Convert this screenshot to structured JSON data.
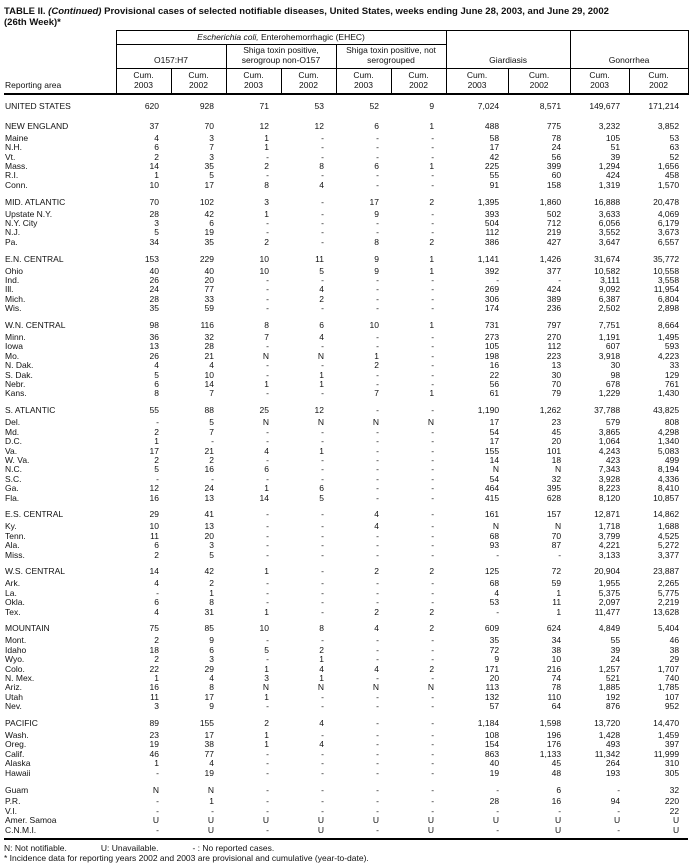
{
  "title": {
    "part1": "TABLE II.",
    "part2": " (Continued) ",
    "part3": "Provisional cases of selected notifiable diseases, United States, weeks ending June 28, 2003, and June 29, 2002",
    "line2": "(26th Week)*"
  },
  "table": {
    "header": {
      "reporting_area": "Reporting area",
      "ehec_italic": "Escherichia coli,",
      "ehec_rest": " Enterohemorrhagic (EHEC)",
      "group_o157": "O157:H7",
      "group_shiga_non_o157": "Shiga toxin positive, serogroup non-O157",
      "group_shiga_not_sero": "Shiga toxin positive, not serogrouped",
      "group_giardiasis": "Giardiasis",
      "group_gonorrhea": "Gonorrhea",
      "cum_label": "Cum.",
      "year_2003": "2003",
      "year_2002": "2002"
    },
    "rows": [
      {
        "area": "UNITED STATES",
        "section": true,
        "values": [
          "620",
          "928",
          "71",
          "53",
          "52",
          "9",
          "7,024",
          "8,571",
          "149,677",
          "171,214"
        ]
      },
      {
        "area": "NEW ENGLAND",
        "section": true,
        "values": [
          "37",
          "70",
          "12",
          "12",
          "6",
          "1",
          "488",
          "775",
          "3,232",
          "3,852"
        ]
      },
      {
        "area": "Maine",
        "section": false,
        "values": [
          "4",
          "3",
          "1",
          "-",
          "-",
          "-",
          "58",
          "78",
          "105",
          "53"
        ]
      },
      {
        "area": "N.H.",
        "section": false,
        "values": [
          "6",
          "7",
          "1",
          "-",
          "-",
          "-",
          "17",
          "24",
          "51",
          "63"
        ]
      },
      {
        "area": "Vt.",
        "section": false,
        "values": [
          "2",
          "3",
          "-",
          "-",
          "-",
          "-",
          "42",
          "56",
          "39",
          "52"
        ]
      },
      {
        "area": "Mass.",
        "section": false,
        "values": [
          "14",
          "35",
          "2",
          "8",
          "6",
          "1",
          "225",
          "399",
          "1,294",
          "1,656"
        ]
      },
      {
        "area": "R.I.",
        "section": false,
        "values": [
          "1",
          "5",
          "-",
          "-",
          "-",
          "-",
          "55",
          "60",
          "424",
          "458"
        ]
      },
      {
        "area": "Conn.",
        "section": false,
        "values": [
          "10",
          "17",
          "8",
          "4",
          "-",
          "-",
          "91",
          "158",
          "1,319",
          "1,570"
        ]
      },
      {
        "area": "MID. ATLANTIC",
        "section": true,
        "values": [
          "70",
          "102",
          "3",
          "-",
          "17",
          "2",
          "1,395",
          "1,860",
          "16,888",
          "20,478"
        ]
      },
      {
        "area": "Upstate N.Y.",
        "section": false,
        "values": [
          "28",
          "42",
          "1",
          "-",
          "9",
          "-",
          "393",
          "502",
          "3,633",
          "4,069"
        ]
      },
      {
        "area": "N.Y. City",
        "section": false,
        "values": [
          "3",
          "6",
          "-",
          "-",
          "-",
          "-",
          "504",
          "712",
          "6,056",
          "6,179"
        ]
      },
      {
        "area": "N.J.",
        "section": false,
        "values": [
          "5",
          "19",
          "-",
          "-",
          "-",
          "-",
          "112",
          "219",
          "3,552",
          "3,673"
        ]
      },
      {
        "area": "Pa.",
        "section": false,
        "values": [
          "34",
          "35",
          "2",
          "-",
          "8",
          "2",
          "386",
          "427",
          "3,647",
          "6,557"
        ]
      },
      {
        "area": "E.N. CENTRAL",
        "section": true,
        "values": [
          "153",
          "229",
          "10",
          "11",
          "9",
          "1",
          "1,141",
          "1,426",
          "31,674",
          "35,772"
        ]
      },
      {
        "area": "Ohio",
        "section": false,
        "values": [
          "40",
          "40",
          "10",
          "5",
          "9",
          "1",
          "392",
          "377",
          "10,582",
          "10,558"
        ]
      },
      {
        "area": "Ind.",
        "section": false,
        "values": [
          "26",
          "20",
          "-",
          "-",
          "-",
          "-",
          "-",
          "-",
          "3,111",
          "3,558"
        ]
      },
      {
        "area": "Ill.",
        "section": false,
        "values": [
          "24",
          "77",
          "-",
          "4",
          "-",
          "-",
          "269",
          "424",
          "9,092",
          "11,954"
        ]
      },
      {
        "area": "Mich.",
        "section": false,
        "values": [
          "28",
          "33",
          "-",
          "2",
          "-",
          "-",
          "306",
          "389",
          "6,387",
          "6,804"
        ]
      },
      {
        "area": "Wis.",
        "section": false,
        "values": [
          "35",
          "59",
          "-",
          "-",
          "-",
          "-",
          "174",
          "236",
          "2,502",
          "2,898"
        ]
      },
      {
        "area": "W.N. CENTRAL",
        "section": true,
        "values": [
          "98",
          "116",
          "8",
          "6",
          "10",
          "1",
          "731",
          "797",
          "7,751",
          "8,664"
        ]
      },
      {
        "area": "Minn.",
        "section": false,
        "values": [
          "36",
          "32",
          "7",
          "4",
          "-",
          "-",
          "273",
          "270",
          "1,191",
          "1,495"
        ]
      },
      {
        "area": "Iowa",
        "section": false,
        "values": [
          "13",
          "28",
          "-",
          "-",
          "-",
          "-",
          "105",
          "112",
          "607",
          "593"
        ]
      },
      {
        "area": "Mo.",
        "section": false,
        "values": [
          "26",
          "21",
          "N",
          "N",
          "1",
          "-",
          "198",
          "223",
          "3,918",
          "4,223"
        ]
      },
      {
        "area": "N. Dak.",
        "section": false,
        "values": [
          "4",
          "4",
          "-",
          "-",
          "2",
          "-",
          "16",
          "13",
          "30",
          "33"
        ]
      },
      {
        "area": "S. Dak.",
        "section": false,
        "values": [
          "5",
          "10",
          "-",
          "1",
          "-",
          "-",
          "22",
          "30",
          "98",
          "129"
        ]
      },
      {
        "area": "Nebr.",
        "section": false,
        "values": [
          "6",
          "14",
          "1",
          "1",
          "-",
          "-",
          "56",
          "70",
          "678",
          "761"
        ]
      },
      {
        "area": "Kans.",
        "section": false,
        "values": [
          "8",
          "7",
          "-",
          "-",
          "7",
          "1",
          "61",
          "79",
          "1,229",
          "1,430"
        ]
      },
      {
        "area": "S. ATLANTIC",
        "section": true,
        "values": [
          "55",
          "88",
          "25",
          "12",
          "-",
          "-",
          "1,190",
          "1,262",
          "37,788",
          "43,825"
        ]
      },
      {
        "area": "Del.",
        "section": false,
        "values": [
          "-",
          "5",
          "N",
          "N",
          "N",
          "N",
          "17",
          "23",
          "579",
          "808"
        ]
      },
      {
        "area": "Md.",
        "section": false,
        "values": [
          "2",
          "7",
          "-",
          "-",
          "-",
          "-",
          "54",
          "45",
          "3,865",
          "4,298"
        ]
      },
      {
        "area": "D.C.",
        "section": false,
        "values": [
          "1",
          "-",
          "-",
          "-",
          "-",
          "-",
          "17",
          "20",
          "1,064",
          "1,340"
        ]
      },
      {
        "area": "Va.",
        "section": false,
        "values": [
          "17",
          "21",
          "4",
          "1",
          "-",
          "-",
          "155",
          "101",
          "4,243",
          "5,083"
        ]
      },
      {
        "area": "W. Va.",
        "section": false,
        "values": [
          "2",
          "2",
          "-",
          "-",
          "-",
          "-",
          "14",
          "18",
          "423",
          "499"
        ]
      },
      {
        "area": "N.C.",
        "section": false,
        "values": [
          "5",
          "16",
          "6",
          "-",
          "-",
          "-",
          "N",
          "N",
          "7,343",
          "8,194"
        ]
      },
      {
        "area": "S.C.",
        "section": false,
        "values": [
          "-",
          "-",
          "-",
          "-",
          "-",
          "-",
          "54",
          "32",
          "3,928",
          "4,336"
        ]
      },
      {
        "area": "Ga.",
        "section": false,
        "values": [
          "12",
          "24",
          "1",
          "6",
          "-",
          "-",
          "464",
          "395",
          "8,223",
          "8,410"
        ]
      },
      {
        "area": "Fla.",
        "section": false,
        "values": [
          "16",
          "13",
          "14",
          "5",
          "-",
          "-",
          "415",
          "628",
          "8,120",
          "10,857"
        ]
      },
      {
        "area": "E.S. CENTRAL",
        "section": true,
        "values": [
          "29",
          "41",
          "-",
          "-",
          "4",
          "-",
          "161",
          "157",
          "12,871",
          "14,862"
        ]
      },
      {
        "area": "Ky.",
        "section": false,
        "values": [
          "10",
          "13",
          "-",
          "-",
          "4",
          "-",
          "N",
          "N",
          "1,718",
          "1,688"
        ]
      },
      {
        "area": "Tenn.",
        "section": false,
        "values": [
          "11",
          "20",
          "-",
          "-",
          "-",
          "-",
          "68",
          "70",
          "3,799",
          "4,525"
        ]
      },
      {
        "area": "Ala.",
        "section": false,
        "values": [
          "6",
          "3",
          "-",
          "-",
          "-",
          "-",
          "93",
          "87",
          "4,221",
          "5,272"
        ]
      },
      {
        "area": "Miss.",
        "section": false,
        "values": [
          "2",
          "5",
          "-",
          "-",
          "-",
          "-",
          "-",
          "-",
          "3,133",
          "3,377"
        ]
      },
      {
        "area": "W.S. CENTRAL",
        "section": true,
        "values": [
          "14",
          "42",
          "1",
          "-",
          "2",
          "2",
          "125",
          "72",
          "20,904",
          "23,887"
        ]
      },
      {
        "area": "Ark.",
        "section": false,
        "values": [
          "4",
          "2",
          "-",
          "-",
          "-",
          "-",
          "68",
          "59",
          "1,955",
          "2,265"
        ]
      },
      {
        "area": "La.",
        "section": false,
        "values": [
          "-",
          "1",
          "-",
          "-",
          "-",
          "-",
          "4",
          "1",
          "5,375",
          "5,775"
        ]
      },
      {
        "area": "Okla.",
        "section": false,
        "values": [
          "6",
          "8",
          "-",
          "-",
          "-",
          "-",
          "53",
          "11",
          "2,097",
          "2,219"
        ]
      },
      {
        "area": "Tex.",
        "section": false,
        "values": [
          "4",
          "31",
          "1",
          "-",
          "2",
          "2",
          "-",
          "1",
          "11,477",
          "13,628"
        ]
      },
      {
        "area": "MOUNTAIN",
        "section": true,
        "values": [
          "75",
          "85",
          "10",
          "8",
          "4",
          "2",
          "609",
          "624",
          "4,849",
          "5,404"
        ]
      },
      {
        "area": "Mont.",
        "section": false,
        "values": [
          "2",
          "9",
          "-",
          "-",
          "-",
          "-",
          "35",
          "34",
          "55",
          "46"
        ]
      },
      {
        "area": "Idaho",
        "section": false,
        "values": [
          "18",
          "6",
          "5",
          "2",
          "-",
          "-",
          "72",
          "38",
          "39",
          "38"
        ]
      },
      {
        "area": "Wyo.",
        "section": false,
        "values": [
          "2",
          "3",
          "-",
          "1",
          "-",
          "-",
          "9",
          "10",
          "24",
          "29"
        ]
      },
      {
        "area": "Colo.",
        "section": false,
        "values": [
          "22",
          "29",
          "1",
          "4",
          "4",
          "2",
          "171",
          "216",
          "1,257",
          "1,707"
        ]
      },
      {
        "area": "N. Mex.",
        "section": false,
        "values": [
          "1",
          "4",
          "3",
          "1",
          "-",
          "-",
          "20",
          "74",
          "521",
          "740"
        ]
      },
      {
        "area": "Ariz.",
        "section": false,
        "values": [
          "16",
          "8",
          "N",
          "N",
          "N",
          "N",
          "113",
          "78",
          "1,885",
          "1,785"
        ]
      },
      {
        "area": "Utah",
        "section": false,
        "values": [
          "11",
          "17",
          "1",
          "-",
          "-",
          "-",
          "132",
          "110",
          "192",
          "107"
        ]
      },
      {
        "area": "Nev.",
        "section": false,
        "values": [
          "3",
          "9",
          "-",
          "-",
          "-",
          "-",
          "57",
          "64",
          "876",
          "952"
        ]
      },
      {
        "area": "PACIFIC",
        "section": true,
        "values": [
          "89",
          "155",
          "2",
          "4",
          "-",
          "-",
          "1,184",
          "1,598",
          "13,720",
          "14,470"
        ]
      },
      {
        "area": "Wash.",
        "section": false,
        "values": [
          "23",
          "17",
          "1",
          "-",
          "-",
          "-",
          "108",
          "196",
          "1,428",
          "1,459"
        ]
      },
      {
        "area": "Oreg.",
        "section": false,
        "values": [
          "19",
          "38",
          "1",
          "4",
          "-",
          "-",
          "154",
          "176",
          "493",
          "397"
        ]
      },
      {
        "area": "Calif.",
        "section": false,
        "values": [
          "46",
          "77",
          "-",
          "-",
          "-",
          "-",
          "863",
          "1,133",
          "11,342",
          "11,999"
        ]
      },
      {
        "area": "Alaska",
        "section": false,
        "values": [
          "1",
          "4",
          "-",
          "-",
          "-",
          "-",
          "40",
          "45",
          "264",
          "310"
        ]
      },
      {
        "area": "Hawaii",
        "section": false,
        "values": [
          "-",
          "19",
          "-",
          "-",
          "-",
          "-",
          "19",
          "48",
          "193",
          "305"
        ]
      },
      {
        "area": "Guam",
        "section": true,
        "values": [
          "N",
          "N",
          "-",
          "-",
          "-",
          "-",
          "-",
          "6",
          "-",
          "32"
        ]
      },
      {
        "area": "P.R.",
        "section": false,
        "values": [
          "-",
          "1",
          "-",
          "-",
          "-",
          "-",
          "28",
          "16",
          "94",
          "220"
        ]
      },
      {
        "area": "V.I.",
        "section": false,
        "values": [
          "-",
          "-",
          "-",
          "-",
          "-",
          "-",
          "-",
          "-",
          "-",
          "22"
        ]
      },
      {
        "area": "Amer. Samoa",
        "section": false,
        "values": [
          "U",
          "U",
          "U",
          "U",
          "U",
          "U",
          "U",
          "U",
          "U",
          "U"
        ]
      },
      {
        "area": "C.N.M.I.",
        "section": false,
        "values": [
          "-",
          "U",
          "-",
          "U",
          "-",
          "U",
          "-",
          "U",
          "-",
          "U"
        ]
      }
    ]
  },
  "footnotes": {
    "n": "N: Not notifiable.",
    "u": "U: Unavailable.",
    "dash": "- : No reported cases.",
    "star": "* Incidence data for reporting years 2002 and 2003 are provisional and cumulative (year-to-date)."
  }
}
